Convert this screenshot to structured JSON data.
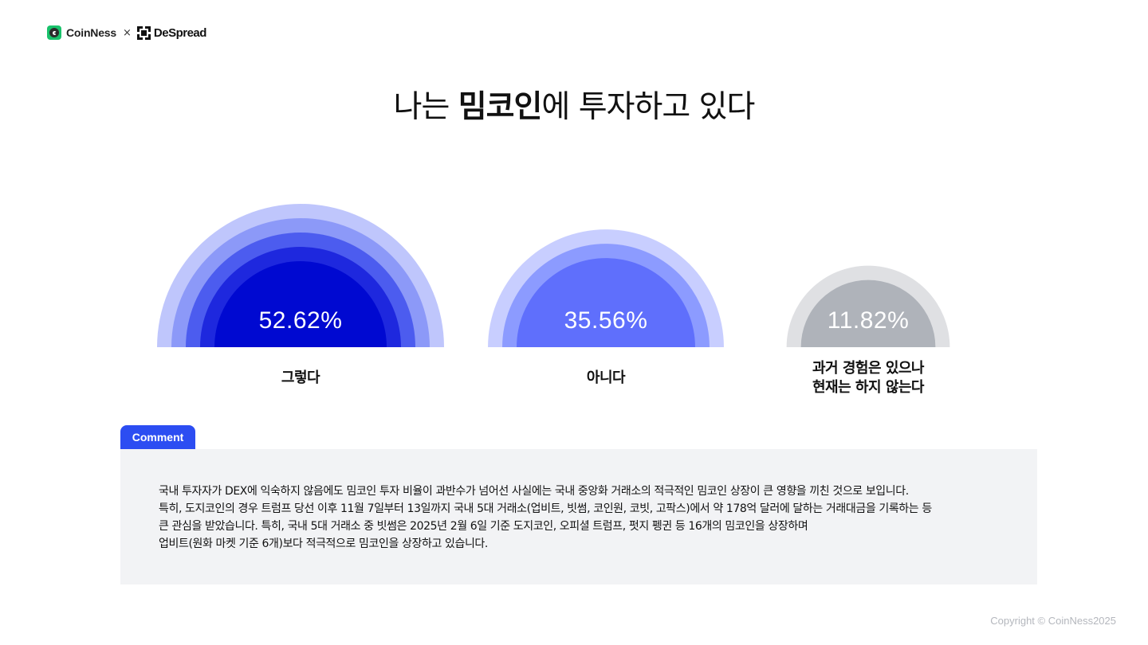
{
  "header": {
    "brand_left": "CoinNess",
    "separator": "×",
    "brand_right": "DeSpread"
  },
  "title": {
    "prefix": "나는 ",
    "bold": "밈코인",
    "suffix": "에 투자하고 있다"
  },
  "chart_data": {
    "type": "pie",
    "title": "나는 밈코인에 투자하고 있다",
    "categories": [
      "그렇다",
      "아니다",
      "과거 경험은 있으나 현재는 하지 않는다"
    ],
    "values": [
      52.62,
      35.56,
      11.82
    ],
    "value_labels": [
      "52.62%",
      "35.56%",
      "11.82%"
    ],
    "label_lines": [
      [
        "그렇다"
      ],
      [
        "아니다"
      ],
      [
        "과거 경험은 있으나",
        "현재는 하지 않는다"
      ]
    ],
    "style": "concentric semicircles, size proportional to share",
    "colors": [
      [
        "#bfc6fc",
        "#8c99f8",
        "#4c5cef",
        "#1e28de",
        "#0009d1"
      ],
      [
        "#c8ceff",
        "#8c9bff",
        "#5f6ffc"
      ],
      [
        "#dfe0e3",
        "#afb3ba"
      ]
    ]
  },
  "comment": {
    "tab_label": "Comment",
    "lines": [
      "국내 투자자가 DEX에 익숙하지 않음에도 밈코인 투자 비율이 과반수가 넘어선 사실에는 국내 중앙화 거래소의 적극적인 밈코인 상장이 큰 영향을 끼친 것으로 보입니다.",
      "특히, 도지코인의 경우 트럼프 당선 이후 11월 7일부터 13일까지 국내 5대 거래소(업비트, 빗썸, 코인원, 코빗, 고팍스)에서 약 178억 달러에 달하는 거래대금을 기록하는 등",
      "큰 관심을 받았습니다. 특히, 국내 5대 거래소 중 빗썸은 2025년 2월 6일 기준 도지코인, 오피셜 트럼프, 펏지 펭귄 등 16개의 밈코인을 상장하며",
      "업비트(원화 마켓 기준 6개)보다 적극적으로 밈코인을 상장하고 있습니다."
    ]
  },
  "footer": {
    "copyright": "Copyright © CoinNess2025"
  }
}
